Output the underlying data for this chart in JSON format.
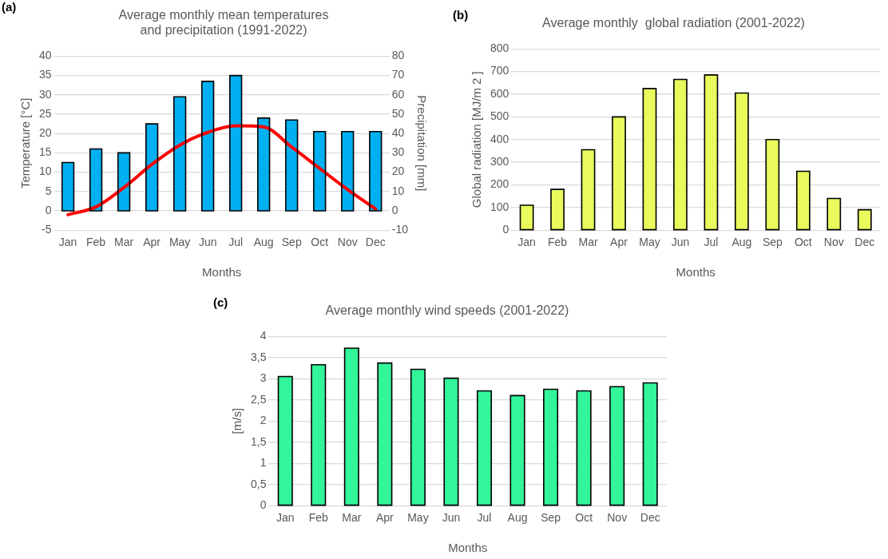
{
  "chart_data": [
    {
      "type": "bar",
      "title": "Average monthly mean temperatures\nand precipitation (1991-2022)",
      "xlabel": "Months",
      "ylabel": "Temperature [°C]",
      "y2label": "Precipitation [mm]",
      "annotations": [
        "(a)"
      ],
      "categories": [
        "Jan",
        "Feb",
        "Mar",
        "Apr",
        "May",
        "Jun",
        "Jul",
        "Aug",
        "Sep",
        "Oct",
        "Nov",
        "Dec"
      ],
      "series": [
        {
          "type": "bar",
          "axis": "y2",
          "color": "#00b0f0",
          "values": [
            25,
            32,
            30,
            45,
            59,
            67,
            70,
            48,
            47,
            41,
            41,
            41
          ]
        },
        {
          "type": "line",
          "axis": "y",
          "color": "#ff0000",
          "values": [
            -1,
            1,
            6,
            12,
            17,
            20.3,
            22,
            21.7,
            16.5,
            11,
            5.5,
            0.5
          ]
        }
      ],
      "ylim": [
        -5,
        40
      ],
      "yticks": [
        -5,
        0,
        5,
        10,
        15,
        20,
        25,
        30,
        35,
        40
      ],
      "y2lim": [
        -10,
        80
      ],
      "y2ticks": [
        -10,
        0,
        10,
        20,
        30,
        40,
        50,
        60,
        70,
        80
      ],
      "grid": "y",
      "legend": false,
      "marker": "none",
      "line_style": "solid"
    },
    {
      "type": "bar",
      "title": "Average monthly  global radiation (2001-2022)",
      "xlabel": "Months",
      "ylabel": "Global radiation [MJ/m 2 ]",
      "annotations": [
        "(b)"
      ],
      "categories": [
        "Jan",
        "Feb",
        "Mar",
        "Apr",
        "May",
        "Jun",
        "Jul",
        "Aug",
        "Sep",
        "Oct",
        "Nov",
        "Dec"
      ],
      "series": [
        {
          "color": "#e8fa5c",
          "values": [
            110,
            180,
            355,
            500,
            625,
            665,
            685,
            605,
            400,
            260,
            140,
            90
          ]
        }
      ],
      "ylim": [
        0,
        800
      ],
      "yticks": [
        0,
        100,
        200,
        300,
        400,
        500,
        600,
        700,
        800
      ],
      "grid": "y",
      "legend": false
    },
    {
      "type": "bar",
      "title": "Average monthly wind speeds (2001-2022)",
      "xlabel": "Months",
      "ylabel": "[m/s]",
      "annotations": [
        "(c)"
      ],
      "categories": [
        "Jan",
        "Feb",
        "Mar",
        "Apr",
        "May",
        "Jun",
        "Jul",
        "Aug",
        "Sep",
        "Oct",
        "Nov",
        "Dec"
      ],
      "series": [
        {
          "color": "#33f59a",
          "values": [
            3.05,
            3.33,
            3.72,
            3.37,
            3.22,
            3.01,
            2.71,
            2.6,
            2.75,
            2.71,
            2.81,
            2.9
          ]
        }
      ],
      "ylim": [
        0,
        4
      ],
      "yticks": [
        0,
        {
          "value": 0.5,
          "label": "0,5"
        },
        1,
        {
          "value": 1.5,
          "label": "1,5"
        },
        2,
        {
          "value": 2.5,
          "label": "2,5"
        },
        3,
        {
          "value": 3.5,
          "label": "3,5"
        },
        4
      ],
      "grid": "y",
      "legend": false
    }
  ]
}
